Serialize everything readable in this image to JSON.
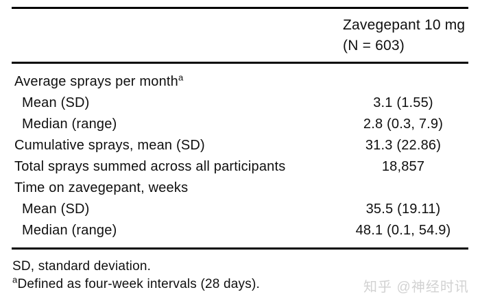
{
  "table": {
    "header": {
      "line1": "Zavegepant 10 mg",
      "line2": "(N = 603)"
    },
    "rows": [
      {
        "label": "Average sprays per month",
        "sup": "a",
        "value": ""
      },
      {
        "label": "Mean (SD)",
        "sup": "",
        "value": "3.1 (1.55)"
      },
      {
        "label": "Median (range)",
        "sup": "",
        "value": "2.8 (0.3, 7.9)"
      },
      {
        "label": "Cumulative sprays, mean (SD)",
        "sup": "",
        "value": "31.3 (22.86)"
      },
      {
        "label": "Total sprays summed across all participants",
        "sup": "",
        "value": "18,857"
      },
      {
        "label": "Time on zavegepant, weeks",
        "sup": "",
        "value": ""
      },
      {
        "label": "Mean (SD)",
        "sup": "",
        "value": "35.5 (19.11)"
      },
      {
        "label": "Median (range)",
        "sup": "",
        "value": "48.1 (0.1, 54.9)"
      }
    ],
    "footnotes": [
      {
        "sup": "",
        "text": "SD, standard deviation."
      },
      {
        "sup": "a",
        "text": "Defined as four-week intervals (28 days)."
      }
    ]
  },
  "watermark": {
    "text": "知乎 @神经时讯"
  },
  "colors": {
    "rule": "#000000",
    "text": "#0f0f0f",
    "background": "#ffffff",
    "watermark": "#d2d2d2"
  }
}
